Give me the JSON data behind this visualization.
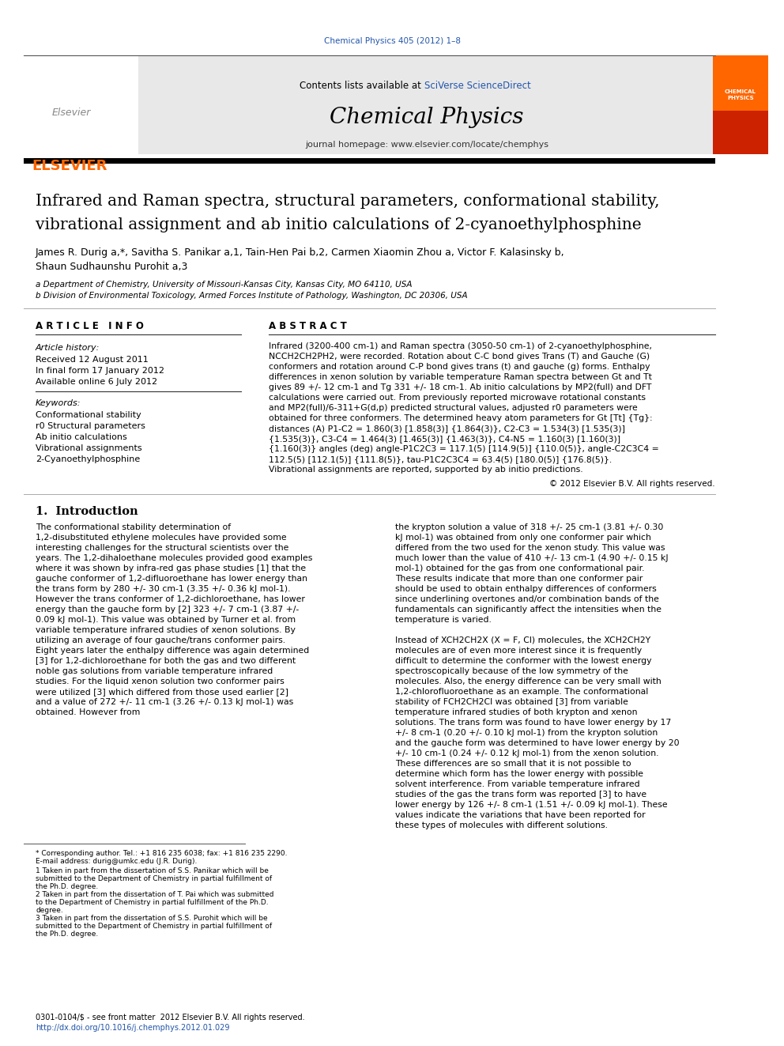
{
  "page_width": 9.92,
  "page_height": 13.23,
  "background_color": "#ffffff",
  "journal_ref_color": "#2255aa",
  "journal_ref": "Chemical Physics 405 (2012) 1–8",
  "header_bg": "#e8e8e8",
  "header_contents": "Contents lists available at ",
  "header_sciverse": "SciVerse ScienceDirect",
  "header_sciverse_color": "#2255aa",
  "journal_title": "Chemical Physics",
  "journal_homepage_label": "journal homepage: www.elsevier.com/locate/chemphys",
  "elsevier_color": "#ff6600",
  "thick_bar_color": "#000000",
  "paper_title_line1": "Infrared and Raman spectra, structural parameters, conformational stability,",
  "paper_title_line2": "vibrational assignment and ab initio calculations of 2-cyanoethylphosphine",
  "authors": "James R. Durig a,*, Savitha S. Panikar a,1, Tain-Hen Pai b,2, Carmen Xiaomin Zhou a, Victor F. Kalasinsky b,",
  "authors2": "Shaun Sudhaunshu Purohit a,3",
  "affil_a": "a Department of Chemistry, University of Missouri-Kansas City, Kansas City, MO 64110, USA",
  "affil_b": "b Division of Environmental Toxicology, Armed Forces Institute of Pathology, Washington, DC 20306, USA",
  "article_info_title": "A R T I C L E   I N F O",
  "abstract_title": "A B S T R A C T",
  "article_history_label": "Article history:",
  "received": "Received 12 August 2011",
  "final_form": "In final form 17 January 2012",
  "available": "Available online 6 July 2012",
  "keywords_label": "Keywords:",
  "keywords": [
    "Conformational stability",
    "r0 Structural parameters",
    "Ab initio calculations",
    "Vibrational assignments",
    "2-Cyanoethylphosphine"
  ],
  "abstract_text": "Infrared (3200-400 cm-1) and Raman spectra (3050-50 cm-1) of 2-cyanoethylphosphine, NCCH2CH2PH2, were recorded. Rotation about C-C bond gives Trans (T) and Gauche (G) conformers and rotation around C-P bond gives trans (t) and gauche (g) forms. Enthalpy differences in xenon solution by variable temperature Raman spectra between Gt and Tt gives 89 +/- 12 cm-1 and Tg 331 +/- 18 cm-1. Ab initio calculations by MP2(full) and DFT calculations were carried out. From previously reported microwave rotational constants and MP2(full)/6-311+G(d,p) predicted structural values, adjusted r0 parameters were obtained for three conformers. The determined heavy atom parameters for Gt [Tt] {Tg}: distances (A) P1-C2 = 1.860(3) [1.858(3)] {1.864(3)}, C2-C3 = 1.534(3) [1.535(3)] {1.535(3)}, C3-C4 = 1.464(3) [1.465(3)] {1.463(3)}, C4-N5 = 1.160(3) [1.160(3)] {1.160(3)} angles (deg) angle-P1C2C3 = 117.1(5) [114.9(5)] {110.0(5)}, angle-C2C3C4 = 112.5(5) [112.1(5)] {111.8(5)}, tau-P1C2C3C4 = 63.4(5) [180.0(5)] {176.8(5)}. Vibrational assignments are reported, supported by ab initio predictions.",
  "copyright": "2012 Elsevier B.V. All rights reserved.",
  "intro_title": "1.  Introduction",
  "intro_col1": "The conformational stability determination of 1,2-disubstituted ethylene molecules have provided some interesting challenges for the structural scientists over the years. The 1,2-dihaloethane molecules provided good examples where it was shown by infra-red gas phase studies [1] that the gauche conformer of 1,2-difluoroethane has lower energy than the trans form by 280 +/- 30 cm-1 (3.35 +/- 0.36 kJ mol-1). However the trans conformer of 1,2-dichloroethane, has lower energy than the gauche form by [2] 323 +/- 7 cm-1 (3.87 +/- 0.09 kJ mol-1). This value was obtained by Turner et al. from variable temperature infrared studies of xenon solutions. By utilizing an average of four gauche/trans conformer pairs. Eight years later the enthalpy difference was again determined [3] for 1,2-dichloroethane for both the gas and two different noble gas solutions from variable temperature infrared studies. For the liquid xenon solution two conformer pairs were utilized [3] which differed from those used earlier [2] and a value of 272 +/- 11 cm-1 (3.26 +/- 0.13 kJ mol-1) was obtained. However from",
  "intro_col2": "the krypton solution a value of 318 +/- 25 cm-1 (3.81 +/- 0.30 kJ mol-1) was obtained from only one conformer pair which differed from the two used for the xenon study. This value was much lower than the value of 410 +/- 13 cm-1 (4.90 +/- 0.15 kJ mol-1) obtained for the gas from one conformational pair. These results indicate that more than one conformer pair should be used to obtain enthalpy differences of conformers since underlining overtones and/or combination bands of the fundamentals can significantly affect the intensities when the temperature is varied.\n\nInstead of XCH2CH2X (X = F, Cl) molecules, the XCH2CH2Y molecules are of even more interest since it is frequently difficult to determine the conformer with the lowest energy spectroscopically because of the low symmetry of the molecules. Also, the energy difference can be very small with 1,2-chlorofluoroethane as an example. The conformational stability of FCH2CH2Cl was obtained [3] from variable temperature infrared studies of both krypton and xenon solutions. The trans form was found to have lower energy by 17 +/- 8 cm-1 (0.20 +/- 0.10 kJ mol-1) from the krypton solution and the gauche form was determined to have lower energy by 20 +/- 10 cm-1 (0.24 +/- 0.12 kJ mol-1) from the xenon solution. These differences are so small that it is not possible to determine which form has the lower energy with possible solvent interference. From variable temperature infrared studies of the gas the trans form was reported [3] to have lower energy by 126 +/- 8 cm-1 (1.51 +/- 0.09 kJ mol-1). These values indicate the variations that have been reported for these types of molecules with different solutions.",
  "footnote_star": "* Corresponding author. Tel.: +1 816 235 6038; fax: +1 816 235 2290.",
  "footnote_email": "E-mail address: durig@umkc.edu (J.R. Durig).",
  "footnote_1": "1 Taken in part from the dissertation of S.S. Panikar which will be submitted to the Department of Chemistry in partial fulfillment of the Ph.D. degree.",
  "footnote_2": "2 Taken in part from the dissertation of T. Pai which was submitted to the Department of Chemistry in partial fulfillment of the Ph.D. degree.",
  "footnote_3": "3 Taken in part from the dissertation of S.S. Purohit which will be submitted to the Department of Chemistry in partial fulfillment of the Ph.D. degree.",
  "issn_line": "0301-0104/$ - see front matter  2012 Elsevier B.V. All rights reserved.",
  "doi_line": "http://dx.doi.org/10.1016/j.chemphys.2012.01.029",
  "doi_color": "#2255aa"
}
